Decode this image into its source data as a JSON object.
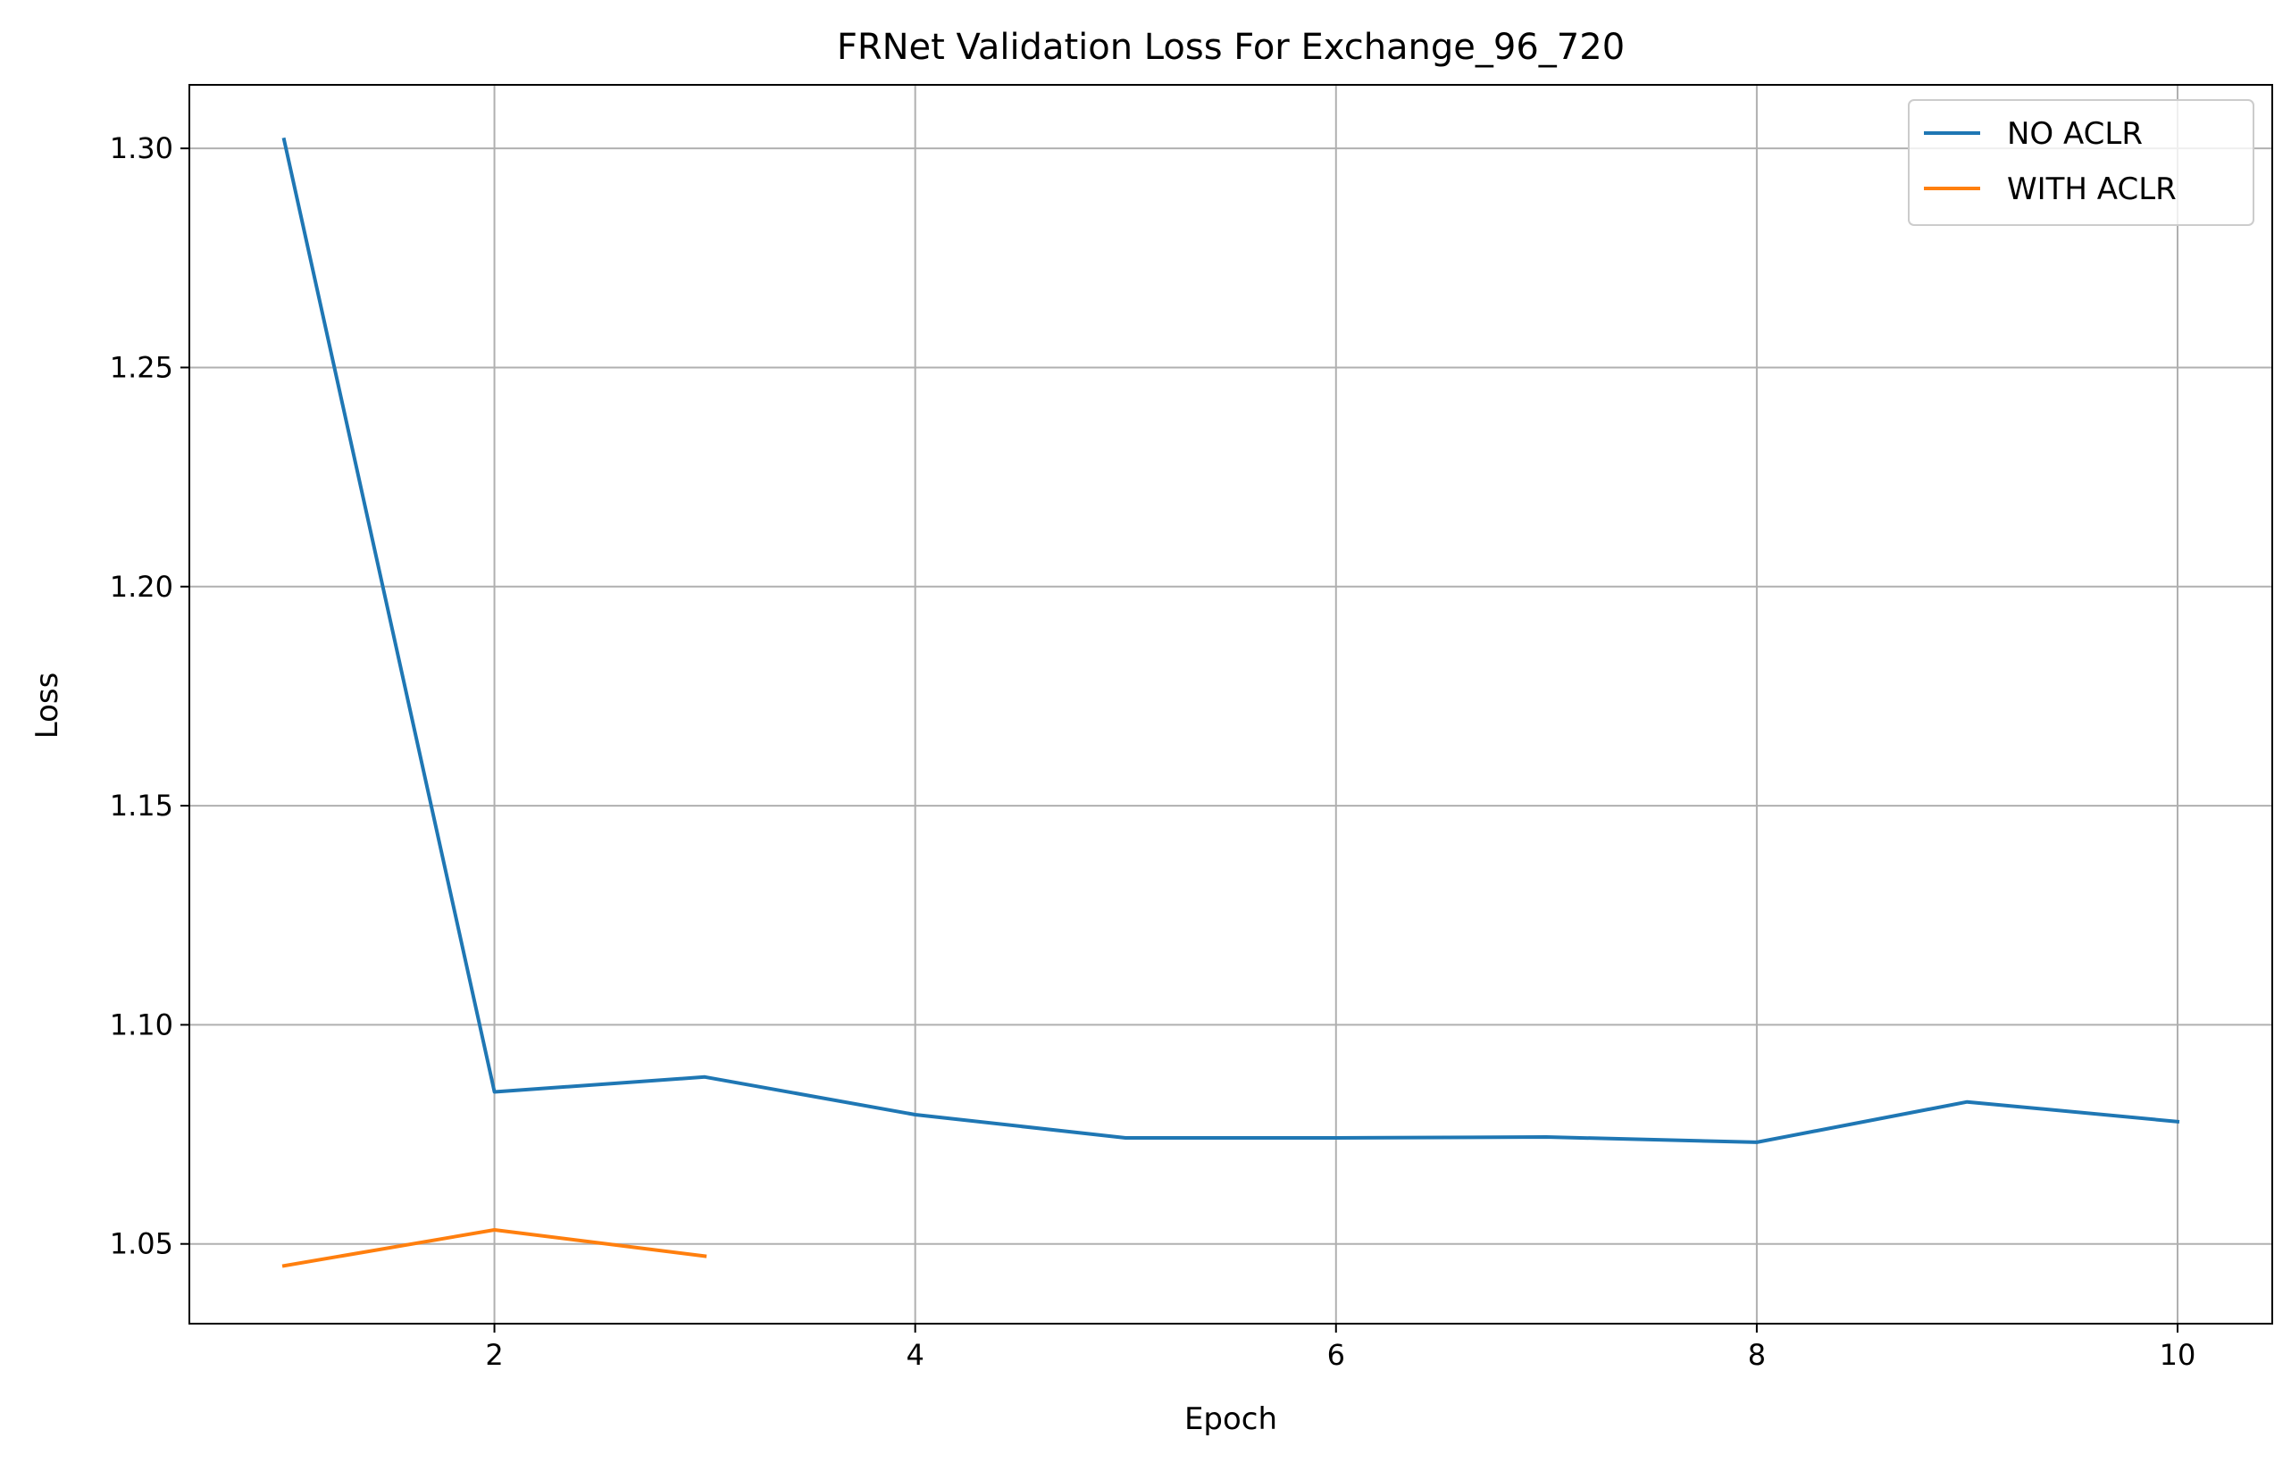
{
  "chart_data": {
    "type": "line",
    "title": "FRNet Validation Loss For Exchange_96_720",
    "xlabel": "Epoch",
    "ylabel": "Loss",
    "xlim": [
      0.55,
      10.45
    ],
    "ylim": [
      1.0318,
      1.3145
    ],
    "xticks": [
      2,
      4,
      6,
      8,
      10
    ],
    "xtick_labels": [
      "2",
      "4",
      "6",
      "8",
      "10"
    ],
    "yticks": [
      1.05,
      1.1,
      1.15,
      1.2,
      1.25,
      1.3
    ],
    "ytick_labels": [
      "1.05",
      "1.10",
      "1.15",
      "1.20",
      "1.25",
      "1.30"
    ],
    "grid": true,
    "legend_position": "top-right",
    "series": [
      {
        "name": "NO ACLR",
        "color": "#1f77b4",
        "x": [
          1,
          2,
          3,
          4,
          5,
          6,
          7,
          8,
          9,
          10
        ],
        "y": [
          1.302,
          1.0847,
          1.0881,
          1.0795,
          1.0742,
          1.0742,
          1.0744,
          1.0732,
          1.0824,
          1.0779
        ]
      },
      {
        "name": "WITH ACLR",
        "color": "#ff7f0e",
        "x": [
          1,
          2,
          3
        ],
        "y": [
          1.045,
          1.0532,
          1.0472
        ]
      }
    ]
  }
}
